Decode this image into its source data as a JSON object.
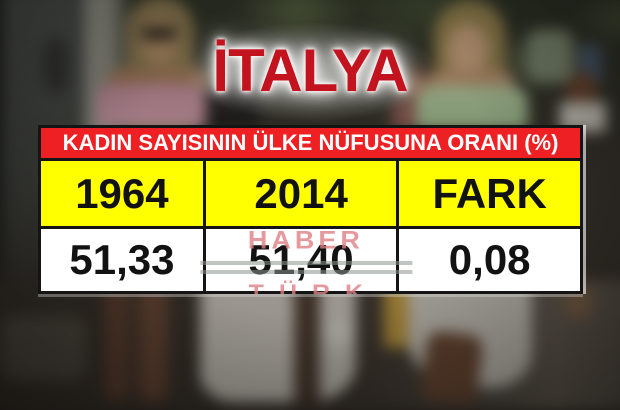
{
  "title": "İTALYA",
  "watermark": {
    "line1": "HABER",
    "line2": "TÜRK"
  },
  "table": {
    "header": "KADIN SAYISININ ÜLKE NÜFUSUNA ORANI (%)",
    "columns": [
      {
        "label": "1964",
        "value": "51,33"
      },
      {
        "label": "2014",
        "value": "51,40"
      },
      {
        "label": "FARK",
        "value": "0,08"
      }
    ]
  },
  "chart_data": {
    "type": "table",
    "title": "KADIN SAYISININ ÜLKE NÜFUSUNA ORANI (%)",
    "country": "İTALYA",
    "columns": [
      "1964",
      "2014",
      "FARK"
    ],
    "rows": [
      [
        "51,33",
        "51,40",
        "0,08"
      ]
    ],
    "values_numeric": {
      "1964": 51.33,
      "2014": 51.4,
      "FARK": 0.08
    },
    "unit": "%"
  },
  "colors": {
    "header_bg": "#ee2024",
    "header_text": "#ffffff",
    "year_row_bg": "#ffff00",
    "value_row_bg": "#ffffff",
    "cell_text": "#121212",
    "table_border": "#141414",
    "title_red": "#c3131f",
    "title_glow": "#ffffff",
    "watermark_pink": "#e08083"
  }
}
